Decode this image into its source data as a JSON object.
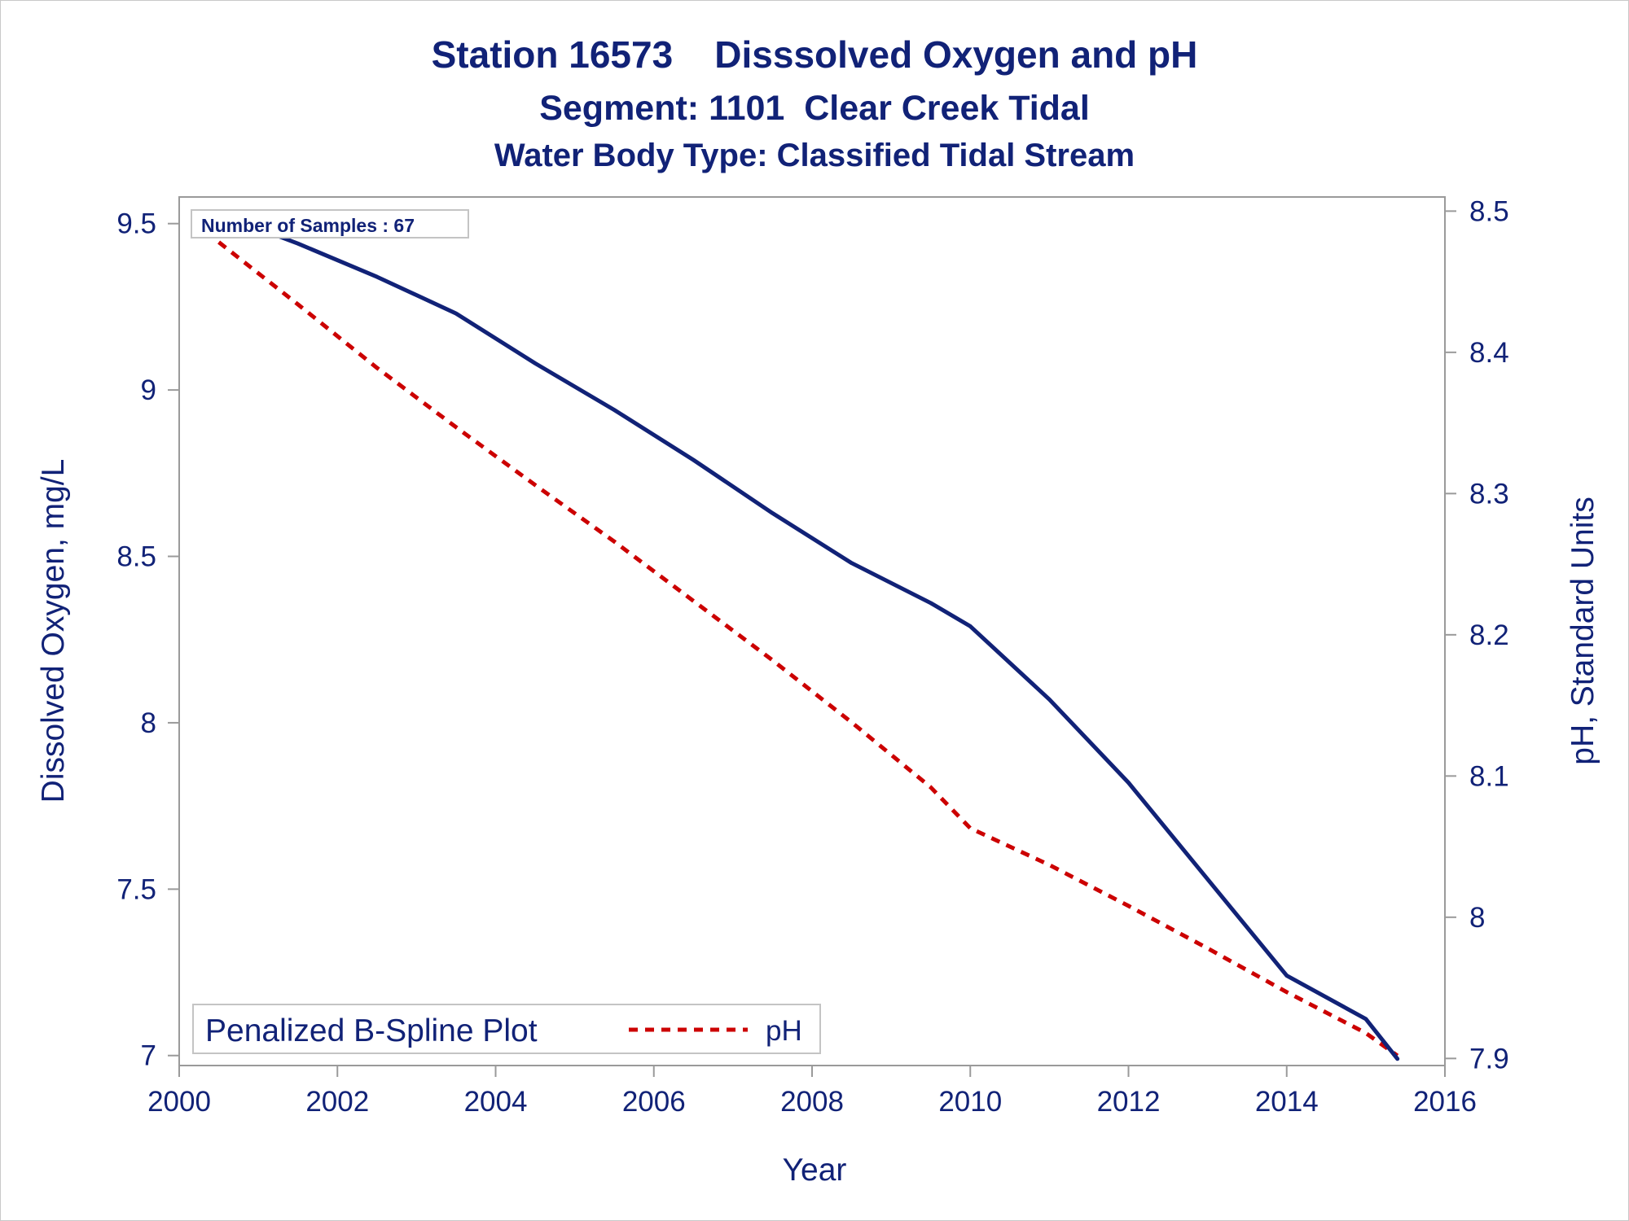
{
  "chart_data": {
    "type": "line",
    "title": "Station 16573    Disssolved Oxygen and pH",
    "subtitle": "Segment: 1101  Clear Creek Tidal",
    "subtitle2": "Water Body Type: Classified Tidal Stream",
    "xlabel": "Year",
    "ylabel": "Dissolved Oxygen, mg/L",
    "y2label": "pH, Standard Units",
    "xlim": [
      2000,
      2016
    ],
    "ylim": [
      6.97,
      9.58
    ],
    "y2lim": [
      7.895,
      8.51
    ],
    "xticks": [
      2000,
      2002,
      2004,
      2006,
      2008,
      2010,
      2012,
      2014,
      2016
    ],
    "yticks": [
      7,
      7.5,
      8,
      8.5,
      9,
      9.5
    ],
    "yticklabels": [
      "7",
      "7.5",
      "8",
      "8.5",
      "9",
      "9.5"
    ],
    "y2ticks": [
      7.9,
      8,
      8.1,
      8.2,
      8.3,
      8.4,
      8.5
    ],
    "y2ticklabels": [
      "7.9",
      "8",
      "8.1",
      "8.2",
      "8.3",
      "8.4",
      "8.5"
    ],
    "grid": false,
    "legend_placement": "bottom-left",
    "legend": {
      "title": "Penalized B-Spline Plot",
      "entries": [
        "pH"
      ]
    },
    "annotation": "Number of Samples : 67",
    "series": [
      {
        "axis": "left",
        "color": "#112277",
        "style": "solid",
        "x": [
          2000.5,
          2001.5,
          2002.5,
          2003.5,
          2004.5,
          2005.5,
          2006.5,
          2007.5,
          2008.5,
          2009.5,
          2010.0,
          2011.0,
          2012.0,
          2013.0,
          2014.0,
          2015.0,
          2015.4
        ],
        "values": [
          9.53,
          9.44,
          9.34,
          9.23,
          9.08,
          8.94,
          8.79,
          8.63,
          8.48,
          8.36,
          8.29,
          8.07,
          7.82,
          7.53,
          7.24,
          7.11,
          6.99
        ]
      },
      {
        "name": "pH",
        "axis": "right",
        "color": "#cc0000",
        "style": "dashed",
        "x": [
          2000.5,
          2001.5,
          2002.5,
          2003.5,
          2004.5,
          2005.5,
          2006.5,
          2007.5,
          2008.5,
          2009.5,
          2010.0,
          2011.0,
          2012.0,
          2013.0,
          2014.0,
          2015.0,
          2015.4
        ],
        "values": [
          8.478,
          8.434,
          8.389,
          8.347,
          8.306,
          8.266,
          8.224,
          8.182,
          8.138,
          8.092,
          8.063,
          8.037,
          8.008,
          7.978,
          7.947,
          7.918,
          7.902
        ]
      }
    ]
  }
}
